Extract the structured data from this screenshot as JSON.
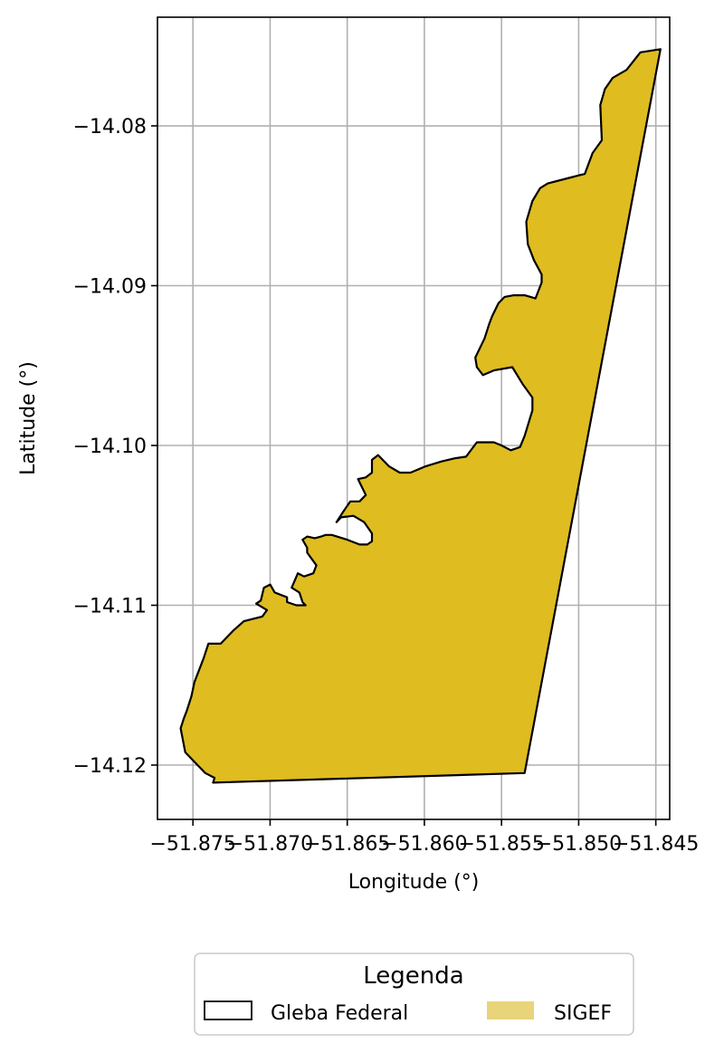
{
  "chart_data": {
    "type": "map",
    "xlabel": "Longitude (°)",
    "ylabel": "Latitude (°)",
    "x_ticks": [
      -51.875,
      -51.87,
      -51.865,
      -51.86,
      -51.855,
      -51.85,
      -51.845
    ],
    "x_tick_labels": [
      "−51.875",
      "−51.870",
      "−51.865",
      "−51.860",
      "−51.855",
      "−51.850",
      "−51.845"
    ],
    "y_ticks": [
      -14.08,
      -14.09,
      -14.1,
      -14.11,
      -14.12
    ],
    "y_tick_labels": [
      "−14.08",
      "−14.09",
      "−14.10",
      "−14.11",
      "−14.12"
    ],
    "xlim": [
      -51.8773,
      -51.8441
    ],
    "ylim": [
      -14.1234,
      -14.0732
    ],
    "grid": true,
    "legend": {
      "title": "Legenda",
      "placement": "bottom-center",
      "entries": [
        {
          "label": "Gleba Federal",
          "style": "outline",
          "edge": "#000000",
          "fill": "none"
        },
        {
          "label": "SIGEF",
          "style": "filled",
          "fill": "#e8d47a"
        }
      ]
    },
    "polygon": {
      "fill": "#dfbc20",
      "edge": "#000000",
      "coordinates": [
        [
          -51.8447,
          -14.0752
        ],
        [
          -51.846,
          -14.0754
        ],
        [
          -51.8469,
          -14.0765
        ],
        [
          -51.8478,
          -14.077
        ],
        [
          -51.8483,
          -14.0777
        ],
        [
          -51.8486,
          -14.0787
        ],
        [
          -51.8485,
          -14.0809
        ],
        [
          -51.8491,
          -14.0817
        ],
        [
          -51.8496,
          -14.083
        ],
        [
          -51.8504,
          -14.0832
        ],
        [
          -51.852,
          -14.0836
        ],
        [
          -51.8525,
          -14.0839
        ],
        [
          -51.853,
          -14.0847
        ],
        [
          -51.8534,
          -14.086
        ],
        [
          -51.8533,
          -14.0874
        ],
        [
          -51.8529,
          -14.0884
        ],
        [
          -51.8524,
          -14.0893
        ],
        [
          -51.8524,
          -14.0898
        ],
        [
          -51.8528,
          -14.0908
        ],
        [
          -51.8535,
          -14.0906
        ],
        [
          -51.8542,
          -14.0906
        ],
        [
          -51.8548,
          -14.0907
        ],
        [
          -51.8552,
          -14.0911
        ],
        [
          -51.8556,
          -14.0919
        ],
        [
          -51.8558,
          -14.0924
        ],
        [
          -51.8561,
          -14.0933
        ],
        [
          -51.8567,
          -14.0945
        ],
        [
          -51.8566,
          -14.0951
        ],
        [
          -51.8562,
          -14.0956
        ],
        [
          -51.8555,
          -14.0953
        ],
        [
          -51.8543,
          -14.0951
        ],
        [
          -51.8536,
          -14.0962
        ],
        [
          -51.853,
          -14.097
        ],
        [
          -51.853,
          -14.0978
        ],
        [
          -51.8535,
          -14.0994
        ],
        [
          -51.8538,
          -14.1001
        ],
        [
          -51.8544,
          -14.1003
        ],
        [
          -51.855,
          -14.1
        ],
        [
          -51.8555,
          -14.0998
        ],
        [
          -51.856,
          -14.0998
        ],
        [
          -51.8566,
          -14.0998
        ],
        [
          -51.8573,
          -14.1007
        ],
        [
          -51.858,
          -14.1008
        ],
        [
          -51.8589,
          -14.101
        ],
        [
          -51.8599,
          -14.1013
        ],
        [
          -51.8609,
          -14.1017
        ],
        [
          -51.8616,
          -14.1017
        ],
        [
          -51.8623,
          -14.1013
        ],
        [
          -51.863,
          -14.1006
        ],
        [
          -51.8634,
          -14.1009
        ],
        [
          -51.8634,
          -14.1017
        ],
        [
          -51.8638,
          -14.102
        ],
        [
          -51.8643,
          -14.1021
        ],
        [
          -51.8641,
          -14.1025
        ],
        [
          -51.8638,
          -14.1031
        ],
        [
          -51.8642,
          -14.1035
        ],
        [
          -51.8648,
          -14.1035
        ],
        [
          -51.8653,
          -14.1042
        ],
        [
          -51.8657,
          -14.1048
        ],
        [
          -51.8654,
          -14.1045
        ],
        [
          -51.8646,
          -14.1044
        ],
        [
          -51.8639,
          -14.1048
        ],
        [
          -51.8634,
          -14.1055
        ],
        [
          -51.8634,
          -14.106
        ],
        [
          -51.8637,
          -14.1062
        ],
        [
          -51.8642,
          -14.1062
        ],
        [
          -51.865,
          -14.1059
        ],
        [
          -51.866,
          -14.1056
        ],
        [
          -51.8664,
          -14.1056
        ],
        [
          -51.8667,
          -14.1057
        ],
        [
          -51.8671,
          -14.1058
        ],
        [
          -51.8676,
          -14.1057
        ],
        [
          -51.8679,
          -14.1059
        ],
        [
          -51.8676,
          -14.1064
        ],
        [
          -51.8676,
          -14.1067
        ],
        [
          -51.867,
          -14.1075
        ],
        [
          -51.8672,
          -14.108
        ],
        [
          -51.8678,
          -14.1082
        ],
        [
          -51.8682,
          -14.108
        ],
        [
          -51.8686,
          -14.1089
        ],
        [
          -51.8681,
          -14.1092
        ],
        [
          -51.8679,
          -14.1098
        ],
        [
          -51.8677,
          -14.11
        ],
        [
          -51.8683,
          -14.11
        ],
        [
          -51.8689,
          -14.1098
        ],
        [
          -51.8689,
          -14.1095
        ],
        [
          -51.8697,
          -14.1092
        ],
        [
          -51.87,
          -14.1087
        ],
        [
          -51.8704,
          -14.1089
        ],
        [
          -51.8706,
          -14.1097
        ],
        [
          -51.8709,
          -14.1099
        ],
        [
          -51.8702,
          -14.1103
        ],
        [
          -51.8705,
          -14.1107
        ],
        [
          -51.8717,
          -14.111
        ],
        [
          -51.8724,
          -14.1116
        ],
        [
          -51.8732,
          -14.1124
        ],
        [
          -51.874,
          -14.1124
        ],
        [
          -51.8743,
          -14.1133
        ],
        [
          -51.8745,
          -14.1138
        ],
        [
          -51.8749,
          -14.1148
        ],
        [
          -51.8751,
          -14.1157
        ],
        [
          -51.8754,
          -14.1166
        ],
        [
          -51.8756,
          -14.1171
        ],
        [
          -51.8758,
          -14.1177
        ],
        [
          -51.8755,
          -14.1192
        ],
        [
          -51.8747,
          -14.12
        ],
        [
          -51.8742,
          -14.1205
        ],
        [
          -51.8736,
          -14.1208
        ],
        [
          -51.8737,
          -14.1211
        ],
        [
          -51.8535,
          -14.1205
        ]
      ]
    }
  }
}
